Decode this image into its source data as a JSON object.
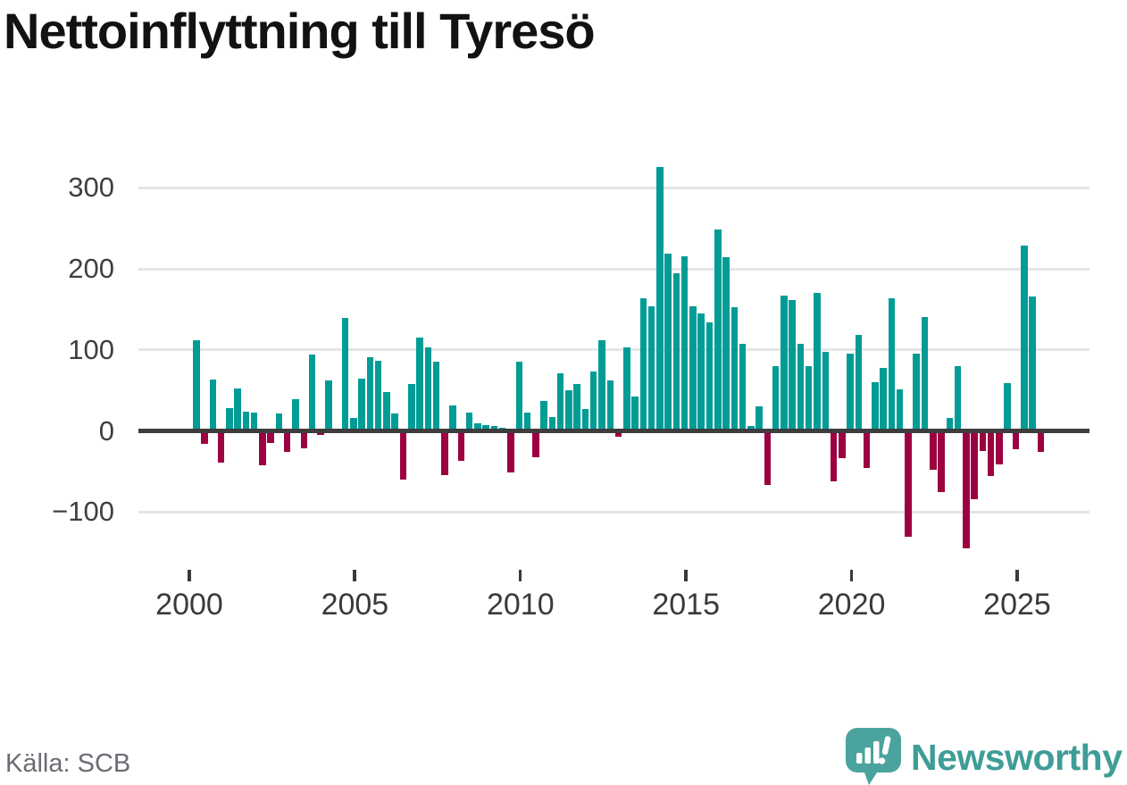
{
  "title": "Nettoinflyttning till Tyresö",
  "source": "Källa: SCB",
  "branding": {
    "logo_text": "Newsworthy"
  },
  "colors": {
    "positive": "#009c95",
    "negative": "#9c0141",
    "grid": "#e5e5e5",
    "zero_line": "#3d3d3d",
    "axis_text": "#3f3f3f",
    "tick_text": "#3a3a3a",
    "title_text": "#121212",
    "source_text": "#6b6b74",
    "logo_teal": "#4aa49d",
    "background": "#ffffff"
  },
  "chart_data": {
    "type": "bar",
    "title": "Nettoinflyttning till Tyresö",
    "xlabel": "",
    "ylabel": "",
    "grid": "horizontal",
    "legend_position": "none",
    "ylim": [
      -160,
      335
    ],
    "y_ticks": [
      300,
      200,
      100,
      0,
      -100
    ],
    "y_tick_labels": [
      "300",
      "200",
      "100",
      "0",
      "−100"
    ],
    "x_tick_years": [
      "2000",
      "2005",
      "2010",
      "2015",
      "2020",
      "2025"
    ],
    "x": [
      "2000Q1",
      "2000Q2",
      "2000Q3",
      "2000Q4",
      "2001Q1",
      "2001Q2",
      "2001Q3",
      "2001Q4",
      "2002Q1",
      "2002Q2",
      "2002Q3",
      "2002Q4",
      "2003Q1",
      "2003Q2",
      "2003Q3",
      "2003Q4",
      "2004Q1",
      "2004Q2",
      "2004Q3",
      "2004Q4",
      "2005Q1",
      "2005Q2",
      "2005Q3",
      "2005Q4",
      "2006Q1",
      "2006Q2",
      "2006Q3",
      "2006Q4",
      "2007Q1",
      "2007Q2",
      "2007Q3",
      "2007Q4",
      "2008Q1",
      "2008Q2",
      "2008Q3",
      "2008Q4",
      "2009Q1",
      "2009Q2",
      "2009Q3",
      "2009Q4",
      "2010Q1",
      "2010Q2",
      "2010Q3",
      "2010Q4",
      "2011Q1",
      "2011Q2",
      "2011Q3",
      "2011Q4",
      "2012Q1",
      "2012Q2",
      "2012Q3",
      "2012Q4",
      "2013Q1",
      "2013Q2",
      "2013Q3",
      "2013Q4",
      "2014Q1",
      "2014Q2",
      "2014Q3",
      "2014Q4",
      "2015Q1",
      "2015Q2",
      "2015Q3",
      "2015Q4",
      "2016Q1",
      "2016Q2",
      "2016Q3",
      "2016Q4",
      "2017Q1",
      "2017Q2",
      "2017Q3",
      "2017Q4",
      "2018Q1",
      "2018Q2",
      "2018Q3",
      "2018Q4",
      "2019Q1",
      "2019Q2",
      "2019Q3",
      "2019Q4",
      "2020Q1",
      "2020Q2",
      "2020Q3",
      "2020Q4",
      "2021Q1",
      "2021Q2",
      "2021Q3",
      "2021Q4",
      "2022Q1",
      "2022Q2",
      "2022Q3",
      "2022Q4",
      "2023Q1",
      "2023Q2",
      "2023Q3",
      "2023Q4",
      "2024Q1",
      "2024Q2",
      "2024Q3",
      "2024Q4",
      "2025Q1",
      "2025Q2",
      "2025Q3"
    ],
    "values": [
      112,
      -16,
      63,
      -39,
      28,
      52,
      24,
      23,
      -42,
      -15,
      21,
      -26,
      39,
      -21,
      94,
      -5,
      62,
      2,
      139,
      16,
      64,
      91,
      87,
      48,
      21,
      -60,
      58,
      115,
      103,
      86,
      -54,
      31,
      -37,
      23,
      9,
      7,
      6,
      4,
      -51,
      86,
      23,
      -32,
      37,
      17,
      71,
      50,
      58,
      27,
      73,
      112,
      62,
      -7,
      103,
      43,
      164,
      154,
      326,
      219,
      195,
      215,
      154,
      145,
      134,
      248,
      214,
      153,
      107,
      6,
      30,
      -67,
      80,
      167,
      162,
      107,
      80,
      170,
      98,
      -62,
      -34,
      95,
      119,
      -46,
      60,
      78,
      164,
      51,
      -130,
      95,
      140,
      -48,
      -75,
      16,
      80,
      -145,
      -84,
      -25,
      -56,
      -41,
      59,
      -23,
      229,
      166,
      -26
    ]
  }
}
